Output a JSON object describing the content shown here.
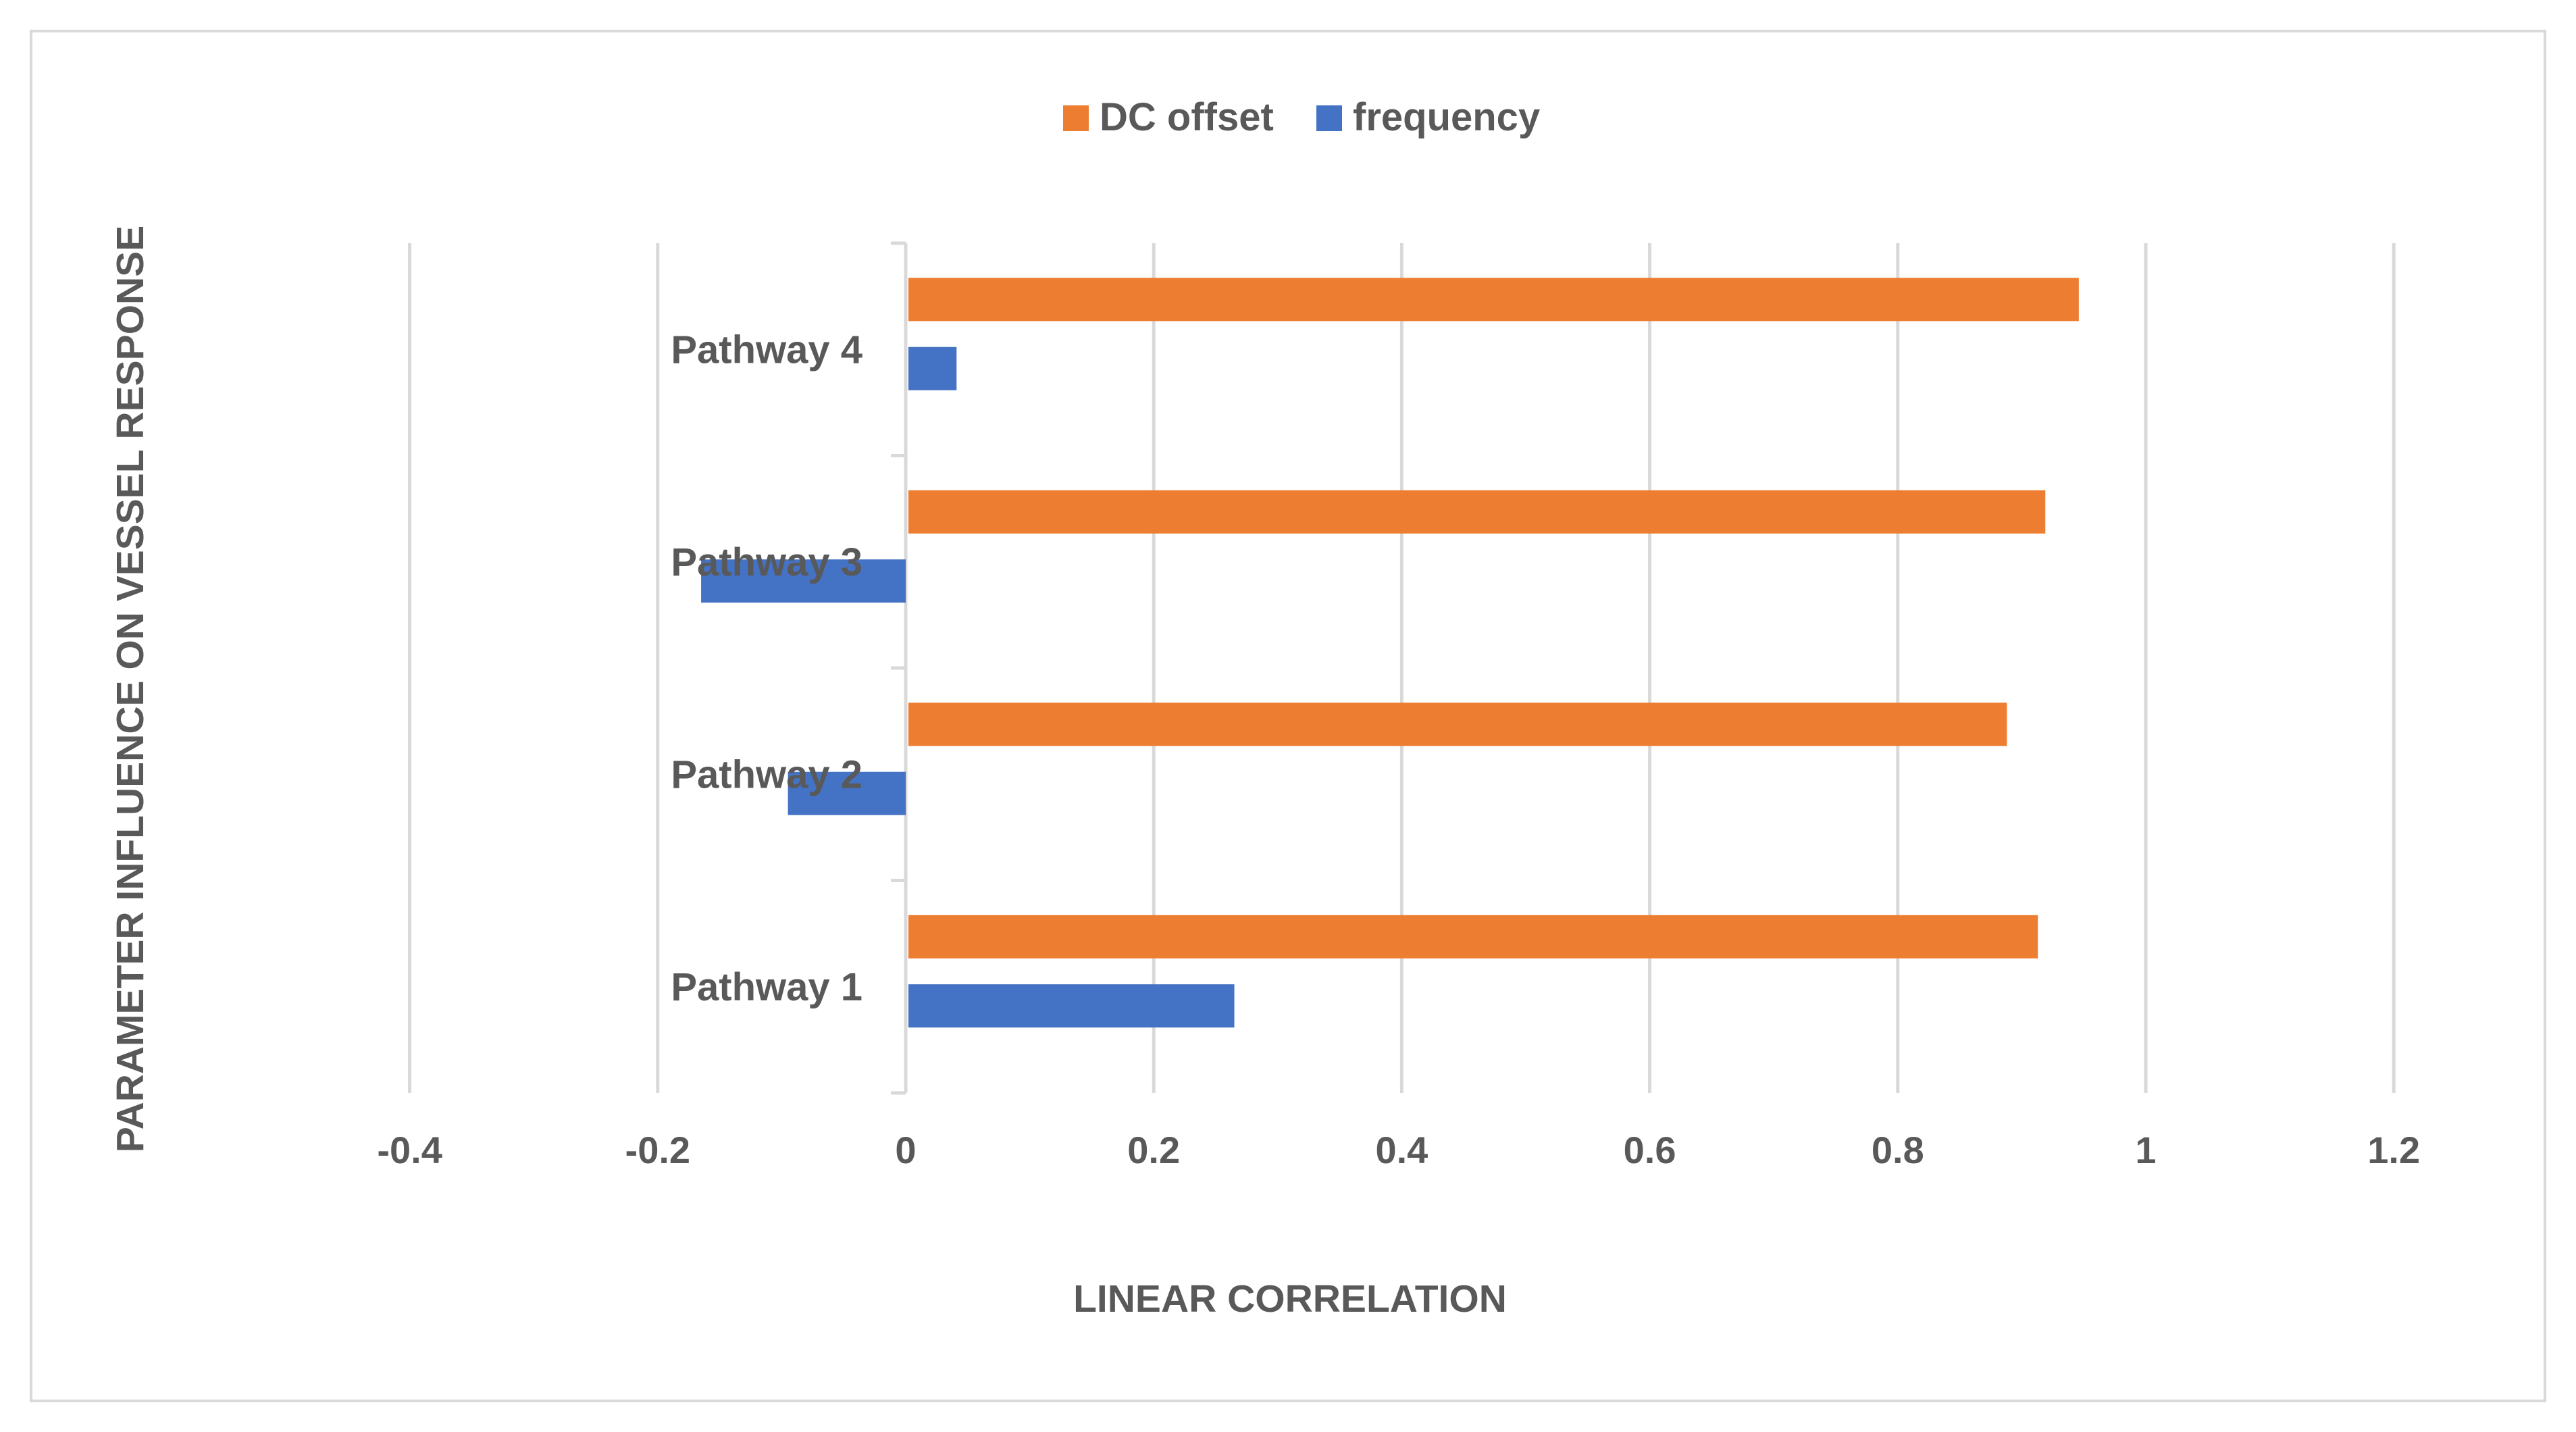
{
  "chart_data": {
    "type": "bar",
    "orientation": "horizontal",
    "title": "",
    "categories": [
      "Pathway 1",
      "Pathway 2",
      "Pathway 3",
      "Pathway 4"
    ],
    "series": [
      {
        "name": "DC offset",
        "color": "#ED7D31",
        "values": [
          0.913,
          0.888,
          0.919,
          0.946
        ]
      },
      {
        "name": "frequency",
        "color": "#4472C4",
        "values": [
          0.265,
          -0.095,
          -0.165,
          0.041
        ]
      }
    ],
    "legend_order": [
      "DC offset",
      "frequency"
    ],
    "legend_position": "top-center",
    "xlabel": "LINEAR CORRELATION",
    "ylabel": "PARAMETER INFLUENCE ON VESSEL RESPONSE",
    "xlim": [
      -0.4,
      1.2
    ],
    "xticks": [
      -0.4,
      -0.2,
      0,
      0.2,
      0.4,
      0.6,
      0.8,
      1,
      1.2
    ],
    "xtick_labels": [
      "-0.4",
      "-0.2",
      "0",
      "0.2",
      "0.4",
      "0.6",
      "0.8",
      "1",
      "1.2"
    ],
    "grid": true,
    "grid_color": "#d9d9d9",
    "text_color": "#595959"
  }
}
